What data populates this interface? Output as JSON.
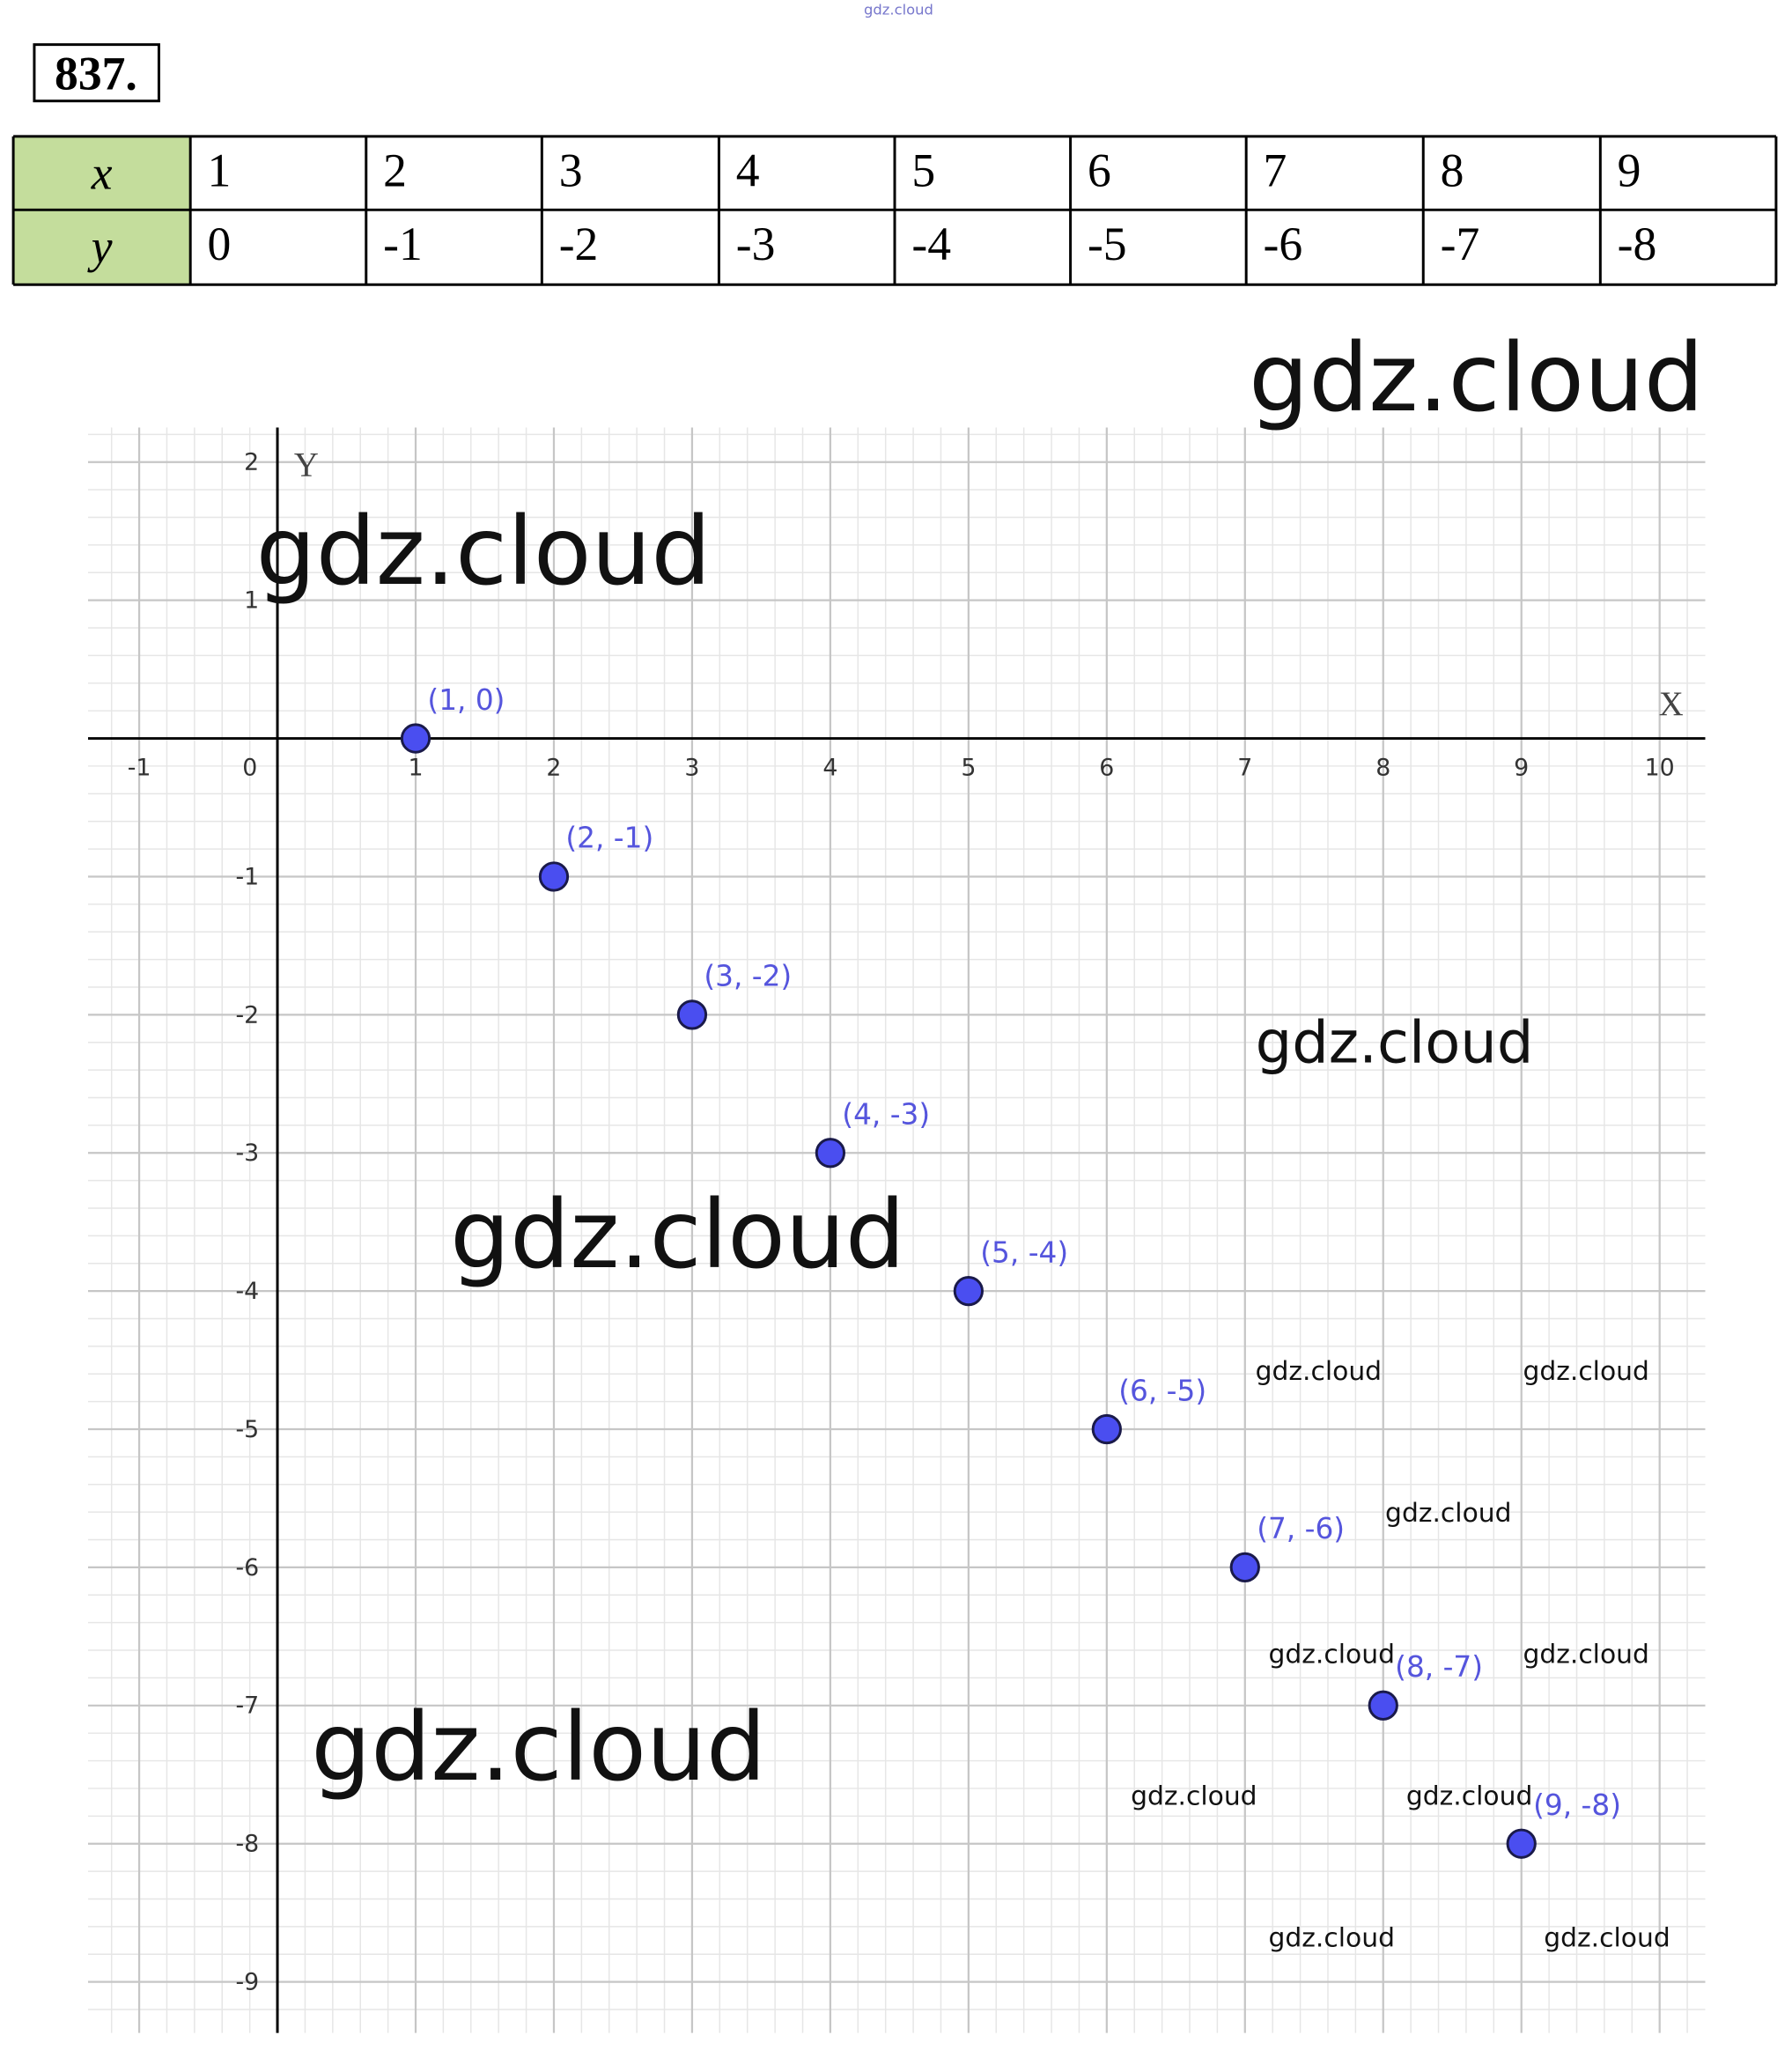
{
  "site_mark": "gdz.cloud",
  "problem_number": "837.",
  "table": {
    "rows": [
      [
        "x",
        1,
        2,
        3,
        4,
        5,
        6,
        7,
        8,
        9
      ],
      [
        "y",
        0,
        -1,
        -2,
        -3,
        -4,
        -5,
        -6,
        -7,
        -8
      ]
    ]
  },
  "chart_data": {
    "type": "scatter",
    "x_label": "X",
    "y_label": "Y",
    "x": [
      1,
      2,
      3,
      4,
      5,
      6,
      7,
      8,
      9
    ],
    "values": [
      0,
      -1,
      -2,
      -3,
      -4,
      -5,
      -6,
      -7,
      -8
    ],
    "value_labels": [
      "(1, 0)",
      "(2, -1)",
      "(3, -2)",
      "(4, -3)",
      "(5, -4)",
      "(6, -5)",
      "(7, -6)",
      "(8, -7)",
      "(9, -8)"
    ],
    "color": "#4a4ef0",
    "xlim": [
      -1.37,
      10.33
    ],
    "ylim": [
      -9.37,
      2.25
    ],
    "xticks": [
      -1,
      0,
      1,
      2,
      3,
      4,
      5,
      6,
      7,
      8,
      9,
      10
    ],
    "yticks": [
      -9,
      -8,
      -7,
      -6,
      -5,
      -4,
      -3,
      -2,
      -1,
      1,
      2
    ],
    "grid": true
  },
  "watermarks": [
    "gdz.cloud",
    "gdz.cloud",
    "gdz.cloud",
    "gdz.cloud",
    "gdz.cloud",
    "gdz.cloud",
    "gdz.cloud",
    "gdz.cloud",
    "gdz.cloud",
    "gdz.cloud",
    "gdz.cloud",
    "gdz.cloud",
    "gdz.cloud",
    "gdz.cloud"
  ]
}
